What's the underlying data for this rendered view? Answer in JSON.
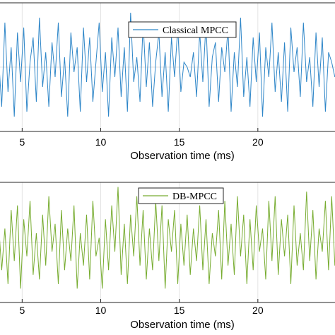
{
  "chart_data": [
    {
      "type": "line",
      "xlabel": "Observation time (ms)",
      "ylabel": "",
      "xlim": [
        3.5,
        25
      ],
      "ylim": [
        -1.3,
        1.3
      ],
      "xticks": [
        5,
        10,
        15,
        20
      ],
      "grid": true,
      "legend": "top-right",
      "series": [
        {
          "name": "Classical MPCC",
          "color": "#2e86c8",
          "x": [
            3.5,
            3.7,
            3.9,
            4.1,
            4.3,
            4.5,
            4.7,
            4.9,
            5.1,
            5.3,
            5.5,
            5.7,
            5.9,
            6.1,
            6.3,
            6.5,
            6.7,
            6.9,
            7.1,
            7.3,
            7.5,
            7.7,
            7.9,
            8.1,
            8.3,
            8.5,
            8.7,
            8.9,
            9.1,
            9.3,
            9.5,
            9.7,
            9.9,
            10.1,
            10.3,
            10.5,
            10.7,
            10.9,
            11.1,
            11.3,
            11.5,
            11.7,
            11.9,
            12.1,
            12.3,
            12.5,
            12.7,
            12.9,
            13.1,
            13.3,
            13.5,
            13.7,
            13.9,
            14.1,
            14.3,
            14.5,
            14.7,
            14.9,
            15.1,
            15.3,
            15.5,
            15.7,
            15.9,
            16.1,
            16.3,
            16.5,
            16.7,
            16.9,
            17.1,
            17.3,
            17.5,
            17.7,
            17.9,
            18.1,
            18.3,
            18.5,
            18.7,
            18.9,
            19.1,
            19.3,
            19.5,
            19.7,
            19.9,
            20.1,
            20.3,
            20.5,
            20.7,
            20.9,
            21.1,
            21.3,
            21.5,
            21.7,
            21.9,
            22.1,
            22.3,
            22.5,
            22.7,
            22.9,
            23.1,
            23.3,
            23.5,
            23.7,
            23.9,
            24.1,
            24.3,
            24.5,
            24.7,
            24.9
          ],
          "y": [
            0.2,
            -0.8,
            0.9,
            -0.5,
            0.4,
            -1.0,
            0.7,
            -0.3,
            0.8,
            -0.9,
            0.1,
            0.6,
            -0.7,
            1.0,
            -0.4,
            0.3,
            -0.8,
            0.5,
            -0.2,
            0.9,
            -0.6,
            0.2,
            -1.0,
            0.7,
            -0.1,
            0.4,
            -0.9,
            0.8,
            -0.3,
            0.6,
            -0.7,
            0.1,
            0.9,
            -0.5,
            0.3,
            -1.0,
            0.6,
            -0.2,
            0.8,
            -0.6,
            0.4,
            -0.9,
            1.1,
            -0.3,
            0.2,
            -0.7,
            0.9,
            -0.4,
            0.5,
            -0.8,
            0.1,
            0.7,
            -0.6,
            0.3,
            -0.9,
            0.6,
            -0.2,
            0.8,
            -0.5,
            0.1,
            0.0,
            -0.2,
            0.3,
            -0.6,
            0.7,
            -0.3,
            0.9,
            -0.8,
            0.2,
            0.5,
            -0.7,
            0.4,
            -0.1,
            0.8,
            -0.9,
            0.3,
            -0.4,
            1.0,
            -0.6,
            0.2,
            -0.8,
            0.6,
            -0.3,
            0.7,
            -1.0,
            0.4,
            -0.2,
            0.9,
            -0.5,
            0.3,
            -0.7,
            0.5,
            -0.9,
            0.8,
            -0.1,
            0.4,
            -0.6,
            0.9,
            -0.3,
            0.2,
            -0.8,
            0.7,
            -0.4,
            0.6,
            -0.9,
            0.3,
            0.1,
            -0.2
          ]
        }
      ]
    },
    {
      "type": "line",
      "xlabel": "Observation time (ms)",
      "ylabel": "",
      "xlim": [
        3.5,
        25
      ],
      "ylim": [
        -1.3,
        1.3
      ],
      "xticks": [
        5,
        10,
        15,
        20
      ],
      "grid": true,
      "legend": "top-right",
      "series": [
        {
          "name": "DB-MPCC",
          "color": "#77ac30",
          "x": [
            3.5,
            3.7,
            3.9,
            4.1,
            4.3,
            4.5,
            4.7,
            4.9,
            5.1,
            5.3,
            5.5,
            5.7,
            5.9,
            6.1,
            6.3,
            6.5,
            6.7,
            6.9,
            7.1,
            7.3,
            7.5,
            7.7,
            7.9,
            8.1,
            8.3,
            8.5,
            8.7,
            8.9,
            9.1,
            9.3,
            9.5,
            9.7,
            9.9,
            10.1,
            10.3,
            10.5,
            10.7,
            10.9,
            11.1,
            11.3,
            11.5,
            11.7,
            11.9,
            12.1,
            12.3,
            12.5,
            12.7,
            12.9,
            13.1,
            13.3,
            13.5,
            13.7,
            13.9,
            14.1,
            14.3,
            14.5,
            14.7,
            14.9,
            15.1,
            15.3,
            15.5,
            15.7,
            15.9,
            16.1,
            16.3,
            16.5,
            16.7,
            16.9,
            17.1,
            17.3,
            17.5,
            17.7,
            17.9,
            18.1,
            18.3,
            18.5,
            18.7,
            18.9,
            19.1,
            19.3,
            19.5,
            19.7,
            19.9,
            20.1,
            20.3,
            20.5,
            20.7,
            20.9,
            21.1,
            21.3,
            21.5,
            21.7,
            21.9,
            22.1,
            22.3,
            22.5,
            22.7,
            22.9,
            23.1,
            23.3,
            23.5,
            23.7,
            23.9,
            24.1,
            24.3,
            24.5,
            24.7,
            24.9
          ],
          "y": [
            0.4,
            -0.6,
            0.3,
            -0.9,
            0.7,
            -0.4,
            0.8,
            -1.0,
            0.5,
            -0.3,
            0.9,
            -0.7,
            0.2,
            -0.8,
            0.6,
            -0.5,
            1.0,
            -0.2,
            0.4,
            -0.9,
            0.7,
            -0.6,
            0.3,
            -0.4,
            0.8,
            -1.0,
            0.2,
            -0.5,
            0.6,
            -0.8,
            0.9,
            -0.3,
            0.1,
            -1.0,
            0.5,
            -0.6,
            0.8,
            -0.2,
            1.2,
            -0.7,
            0.4,
            -0.9,
            0.6,
            -0.3,
            1.0,
            -0.5,
            0.7,
            -0.8,
            0.3,
            -0.6,
            0.9,
            -0.4,
            0.8,
            -1.0,
            0.5,
            -0.2,
            0.7,
            -0.9,
            0.4,
            -0.5,
            0.6,
            -0.7,
            0.3,
            -0.4,
            0.8,
            -0.6,
            0.5,
            -0.9,
            0.2,
            -0.3,
            0.7,
            -0.8,
            0.9,
            -0.5,
            0.4,
            -0.7,
            1.0,
            -0.3,
            0.6,
            -0.9,
            0.5,
            -0.6,
            0.8,
            -0.2,
            0.3,
            -0.8,
            0.9,
            -0.4,
            1.0,
            -0.7,
            0.5,
            -0.3,
            0.6,
            -0.9,
            0.8,
            -0.5,
            0.2,
            -0.6,
            1.1,
            -0.4,
            0.7,
            -0.8,
            0.3,
            -0.2,
            0.9,
            -0.6,
            1.0,
            -0.5
          ]
        }
      ]
    }
  ]
}
